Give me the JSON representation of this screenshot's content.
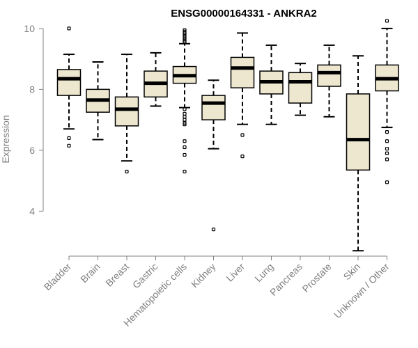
{
  "chart_data": {
    "type": "boxplot",
    "title": "ENSG00000164331 - ANKRA2",
    "xlabel": "",
    "ylabel": "Expression",
    "ylim": [
      2.5,
      10.5
    ],
    "yticks": [
      4,
      6,
      8,
      10
    ],
    "grid": false,
    "colors": {
      "box_fill": "#ede7d0",
      "box_stroke": "#000000",
      "axis": "#808080",
      "title": "#000000"
    },
    "categories": [
      "Bladder",
      "Brain",
      "Breast",
      "Gastric",
      "Hematopoietic cells",
      "Kidney",
      "Liver",
      "Lung",
      "Pancreas",
      "Prostate",
      "Skin",
      "Unknown / Other"
    ],
    "boxes": [
      {
        "name": "Bladder",
        "whisker_low": 6.7,
        "q1": 7.8,
        "median": 8.35,
        "q3": 8.65,
        "whisker_high": 9.15,
        "outliers": [
          10.0,
          6.4,
          6.15
        ]
      },
      {
        "name": "Brain",
        "whisker_low": 6.35,
        "q1": 7.25,
        "median": 7.65,
        "q3": 8.0,
        "whisker_high": 8.9,
        "outliers": []
      },
      {
        "name": "Breast",
        "whisker_low": 5.65,
        "q1": 6.8,
        "median": 7.35,
        "q3": 7.75,
        "whisker_high": 9.15,
        "outliers": [
          5.3
        ]
      },
      {
        "name": "Gastric",
        "whisker_low": 7.45,
        "q1": 7.75,
        "median": 8.2,
        "q3": 8.6,
        "whisker_high": 9.2,
        "outliers": []
      },
      {
        "name": "Hematopoietic cells",
        "whisker_low": 7.4,
        "q1": 8.2,
        "median": 8.45,
        "q3": 8.75,
        "whisker_high": 9.5,
        "outliers": [
          9.95,
          9.9,
          9.85,
          9.8,
          9.75,
          9.7,
          9.65,
          9.6,
          9.55,
          7.35,
          7.2,
          7.1,
          7.0,
          6.9,
          6.85,
          6.3,
          6.1,
          5.85,
          5.3
        ]
      },
      {
        "name": "Kidney",
        "whisker_low": 6.05,
        "q1": 7.0,
        "median": 7.55,
        "q3": 7.8,
        "whisker_high": 8.3,
        "outliers": [
          3.4
        ]
      },
      {
        "name": "Liver",
        "whisker_low": 6.85,
        "q1": 8.05,
        "median": 8.7,
        "q3": 9.05,
        "whisker_high": 9.85,
        "outliers": [
          6.5,
          5.8
        ]
      },
      {
        "name": "Lung",
        "whisker_low": 6.85,
        "q1": 7.85,
        "median": 8.25,
        "q3": 8.6,
        "whisker_high": 9.45,
        "outliers": []
      },
      {
        "name": "Pancreas",
        "whisker_low": 7.15,
        "q1": 7.55,
        "median": 8.25,
        "q3": 8.55,
        "whisker_high": 8.85,
        "outliers": []
      },
      {
        "name": "Prostate",
        "whisker_low": 7.1,
        "q1": 8.1,
        "median": 8.55,
        "q3": 8.8,
        "whisker_high": 9.45,
        "outliers": []
      },
      {
        "name": "Skin",
        "whisker_low": 2.7,
        "q1": 5.35,
        "median": 6.35,
        "q3": 7.85,
        "whisker_high": 9.1,
        "outliers": []
      },
      {
        "name": "Unknown / Other",
        "whisker_low": 6.75,
        "q1": 7.95,
        "median": 8.35,
        "q3": 8.8,
        "whisker_high": 10.0,
        "outliers": [
          10.25,
          6.6,
          6.3,
          6.05,
          5.9,
          5.7,
          4.95
        ]
      }
    ]
  }
}
